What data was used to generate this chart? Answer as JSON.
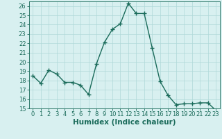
{
  "x": [
    0,
    1,
    2,
    3,
    4,
    5,
    6,
    7,
    8,
    9,
    10,
    11,
    12,
    13,
    14,
    15,
    16,
    17,
    18,
    19,
    20,
    21,
    22,
    23
  ],
  "y": [
    18.5,
    17.7,
    19.1,
    18.7,
    17.8,
    17.8,
    17.5,
    16.5,
    19.8,
    22.1,
    23.5,
    24.1,
    26.3,
    25.2,
    25.2,
    21.5,
    17.9,
    16.4,
    15.4,
    15.5,
    15.5,
    15.6,
    15.6,
    14.8
  ],
  "line_color": "#1a6b5a",
  "marker": "+",
  "markersize": 4,
  "linewidth": 1.0,
  "markeredgewidth": 1.0,
  "xlabel": "Humidex (Indice chaleur)",
  "ylim": [
    15,
    26.5
  ],
  "xlim": [
    -0.5,
    23.5
  ],
  "yticks": [
    15,
    16,
    17,
    18,
    19,
    20,
    21,
    22,
    23,
    24,
    25,
    26
  ],
  "xticks": [
    0,
    1,
    2,
    3,
    4,
    5,
    6,
    7,
    8,
    9,
    10,
    11,
    12,
    13,
    14,
    15,
    16,
    17,
    18,
    19,
    20,
    21,
    22,
    23
  ],
  "bg_color": "#d8f0f0",
  "grid_color": "#afd8d8",
  "line_dark": "#1a6b5a",
  "tick_fontsize": 6.0,
  "xlabel_fontsize": 7.5,
  "xlabel_fontweight": "bold"
}
